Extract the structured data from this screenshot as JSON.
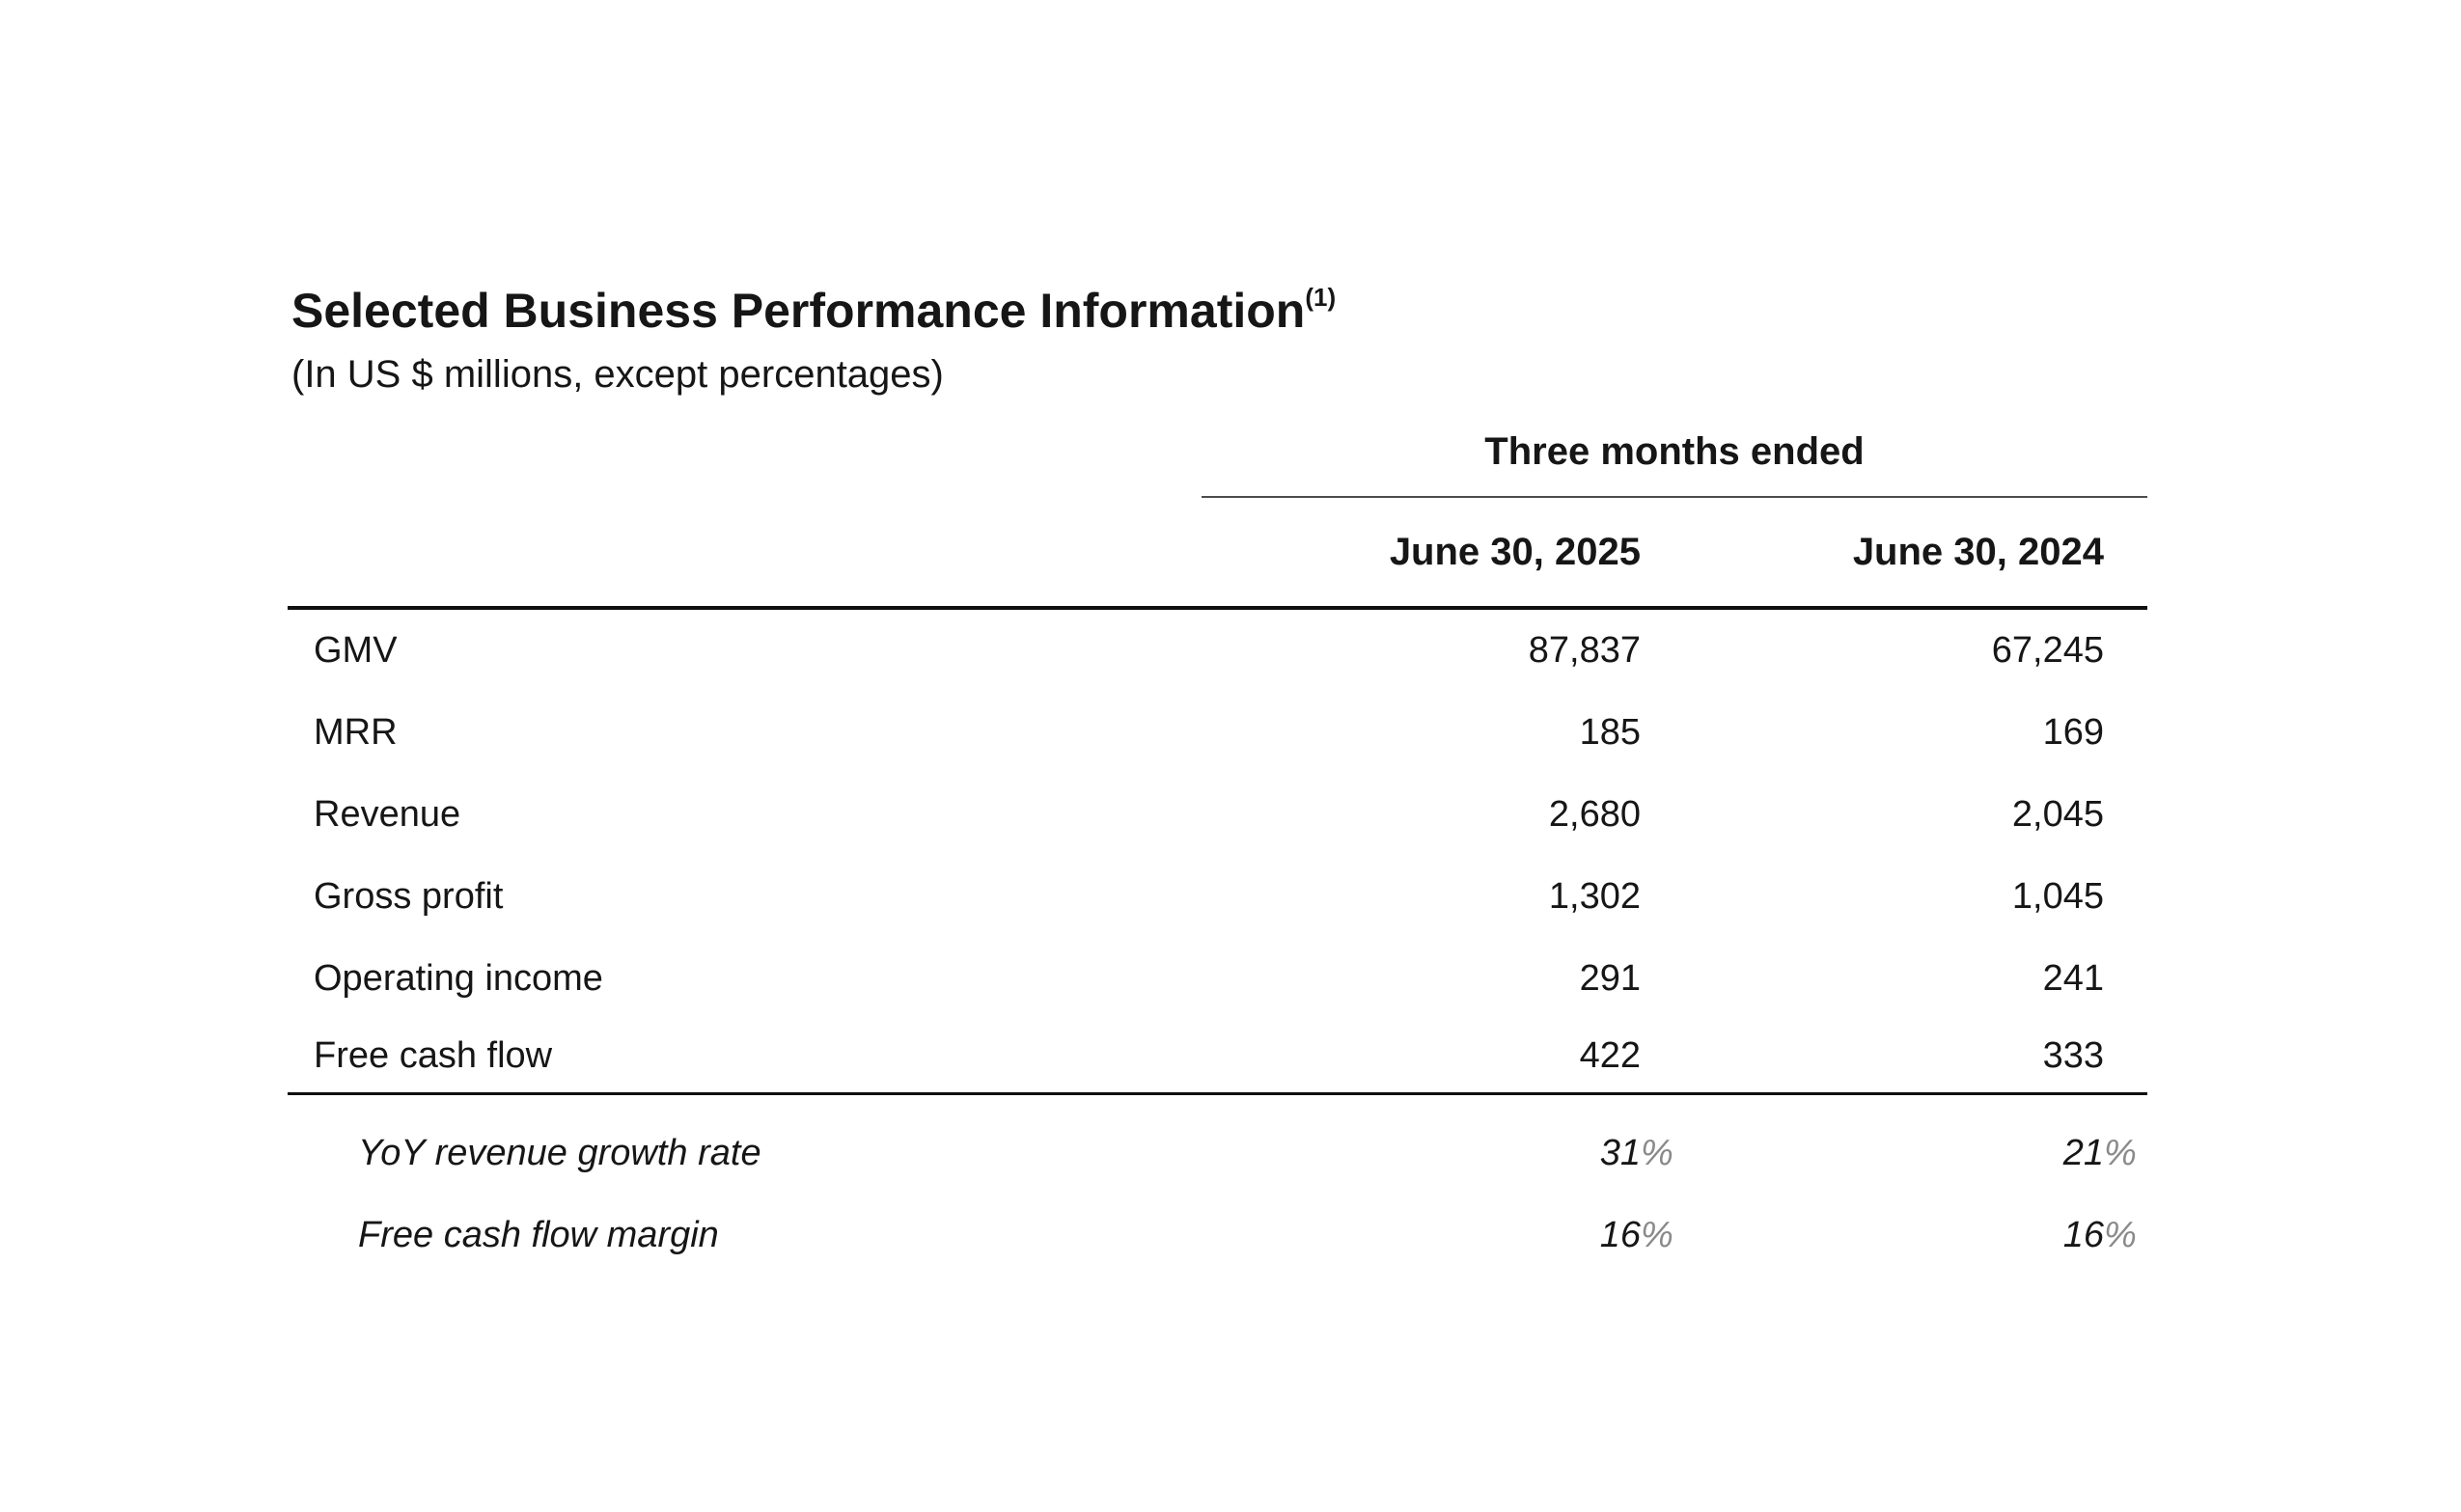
{
  "header": {
    "title": "Selected Business Performance Information",
    "title_superscript": "(1)",
    "subtitle": "(In US $ millions, except percentages)"
  },
  "table": {
    "spanner": "Three months ended",
    "columns": [
      "June 30, 2025",
      "June 30, 2024"
    ],
    "rows": [
      {
        "label": "GMV",
        "values": [
          "87,837",
          "67,245"
        ]
      },
      {
        "label": "MRR",
        "values": [
          "185",
          "169"
        ]
      },
      {
        "label": "Revenue",
        "values": [
          "2,680",
          "2,045"
        ]
      },
      {
        "label": "Gross profit",
        "values": [
          "1,302",
          "1,045"
        ]
      },
      {
        "label": "Operating income",
        "values": [
          "291",
          "241"
        ]
      },
      {
        "label": "Free cash flow",
        "values": [
          "422",
          "333"
        ]
      }
    ],
    "metric_rows": [
      {
        "label": "YoY revenue growth rate",
        "values": [
          "31",
          "21"
        ],
        "suffix": "%"
      },
      {
        "label": "Free cash flow margin",
        "values": [
          "16",
          "16"
        ],
        "suffix": "%"
      }
    ]
  },
  "colors": {
    "text": "#161616",
    "percent_sign": "#8a8a8a",
    "spanner_rule": "#4d4d4d",
    "heavy_rule": "#101010",
    "background": "#ffffff"
  }
}
